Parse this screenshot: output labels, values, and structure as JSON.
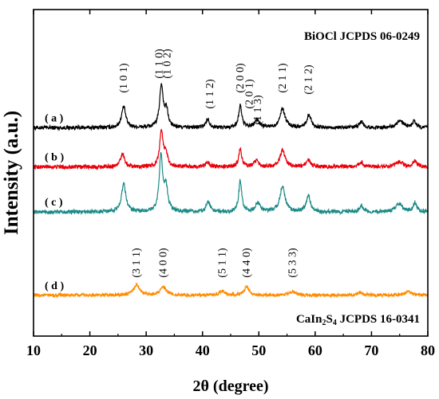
{
  "chart_data": {
    "type": "line",
    "title": "",
    "xlabel": "2θ (degree)",
    "ylabel": "Intensity (a.u.)",
    "xlim": [
      10,
      80
    ],
    "ylim": [
      0,
      1
    ],
    "x_ticks": [
      "10",
      "20",
      "30",
      "40",
      "50",
      "60",
      "70",
      "80"
    ],
    "grid": false,
    "legend": "none",
    "series": [
      {
        "name": "( a )",
        "color": "#000000",
        "baseline": 0.638,
        "peaks": [
          [
            26.0,
            0.064,
            0.45
          ],
          [
            32.7,
            0.13,
            0.38
          ],
          [
            33.6,
            0.05,
            0.35
          ],
          [
            40.9,
            0.026,
            0.4
          ],
          [
            46.7,
            0.067,
            0.34
          ],
          [
            49.7,
            0.024,
            0.5
          ],
          [
            54.2,
            0.058,
            0.55
          ],
          [
            58.9,
            0.04,
            0.45
          ],
          [
            68.2,
            0.019,
            0.4
          ],
          [
            75.0,
            0.022,
            0.7
          ],
          [
            77.6,
            0.019,
            0.4
          ]
        ],
        "noise": 0.006
      },
      {
        "name": "( b )",
        "color": "#e8000b",
        "baseline": 0.518,
        "peaks": [
          [
            25.8,
            0.04,
            0.45
          ],
          [
            32.7,
            0.112,
            0.35
          ],
          [
            33.5,
            0.04,
            0.35
          ],
          [
            40.9,
            0.015,
            0.4
          ],
          [
            46.7,
            0.055,
            0.32
          ],
          [
            49.6,
            0.018,
            0.5
          ],
          [
            54.2,
            0.05,
            0.55
          ],
          [
            58.8,
            0.022,
            0.45
          ],
          [
            68.2,
            0.014,
            0.4
          ],
          [
            75.0,
            0.015,
            0.7
          ],
          [
            77.7,
            0.017,
            0.4
          ]
        ],
        "noise": 0.006
      },
      {
        "name": "( c )",
        "color": "#1b8a86",
        "baseline": 0.38,
        "peaks": [
          [
            26.0,
            0.088,
            0.45
          ],
          [
            32.6,
            0.17,
            0.35
          ],
          [
            33.5,
            0.075,
            0.4
          ],
          [
            41.0,
            0.032,
            0.4
          ],
          [
            46.7,
            0.096,
            0.32
          ],
          [
            49.8,
            0.026,
            0.5
          ],
          [
            54.2,
            0.078,
            0.55
          ],
          [
            58.8,
            0.048,
            0.45
          ],
          [
            68.2,
            0.02,
            0.4
          ],
          [
            74.9,
            0.025,
            0.7
          ],
          [
            77.7,
            0.028,
            0.4
          ]
        ],
        "noise": 0.006
      },
      {
        "name": "( d )",
        "color": "#ff8c00",
        "baseline": 0.125,
        "peaks": [
          [
            28.3,
            0.032,
            0.6
          ],
          [
            33.0,
            0.024,
            0.7
          ],
          [
            43.5,
            0.013,
            0.6
          ],
          [
            47.8,
            0.025,
            0.55
          ],
          [
            56.0,
            0.012,
            0.7
          ],
          [
            68.0,
            0.008,
            0.6
          ],
          [
            76.6,
            0.01,
            0.7
          ]
        ],
        "noise": 0.005
      }
    ],
    "annotations": [
      {
        "text": "BiOCl JCPDS 06-0249",
        "kind": "reference"
      },
      {
        "text": "CaIn",
        "sub1": "2",
        "mid": "S",
        "sub2": "4",
        "tail": " JCPDS 16-0341",
        "kind": "reference"
      },
      {
        "text": "(1 0 1)",
        "x": 26.0
      },
      {
        "text": "(1 1 0)",
        "x": 32.3
      },
      {
        "text": "(1 0 2)",
        "x": 33.7
      },
      {
        "text": "(1 1 2)",
        "x": 41.3
      },
      {
        "text": "(2 0 0)",
        "x": 46.7
      },
      {
        "text": "(2 0 1)",
        "x": 48.3
      },
      {
        "text": "(1 1 3)",
        "x": 49.8
      },
      {
        "text": "(2 1 1)",
        "x": 54.2
      },
      {
        "text": "(2 1 2)",
        "x": 58.8
      },
      {
        "text": "(3 1 1)",
        "x": 28.3
      },
      {
        "text": "(4 0 0)",
        "x": 33.0
      },
      {
        "text": "(5 1 1)",
        "x": 43.5
      },
      {
        "text": "(4 4 0)",
        "x": 47.8
      },
      {
        "text": "(5 3 3)",
        "x": 56.0
      }
    ]
  }
}
